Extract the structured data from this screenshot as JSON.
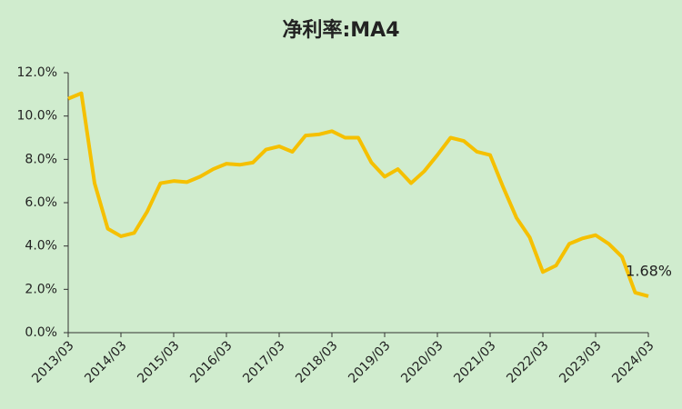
{
  "chart_data": {
    "type": "line",
    "title": "净利率:MA4",
    "categories": [
      "2013/03",
      null,
      null,
      null,
      "2014/03",
      null,
      null,
      null,
      "2015/03",
      null,
      null,
      null,
      "2016/03",
      null,
      null,
      null,
      "2017/03",
      null,
      null,
      null,
      "2018/03",
      null,
      null,
      null,
      "2019/03",
      null,
      null,
      null,
      "2020/03",
      null,
      null,
      null,
      "2021/03",
      null,
      null,
      null,
      "2022/03",
      null,
      null,
      null,
      "2023/03",
      null,
      null,
      null,
      "2024/03"
    ],
    "series": [
      {
        "name": "净利率:MA4",
        "color": "#f5c000",
        "values": [
          10.8,
          11.05,
          6.9,
          4.8,
          4.45,
          4.6,
          5.6,
          6.9,
          7.0,
          6.95,
          7.2,
          7.55,
          7.8,
          7.75,
          7.85,
          8.45,
          8.6,
          8.35,
          9.1,
          9.15,
          9.3,
          9.0,
          9.0,
          7.85,
          7.2,
          7.55,
          6.9,
          7.45,
          8.2,
          9.0,
          8.85,
          8.35,
          8.2,
          6.7,
          5.3,
          4.4,
          2.8,
          3.1,
          4.1,
          4.35,
          4.5,
          4.1,
          3.5,
          1.85,
          1.68
        ],
        "value_labels": [
          null,
          null,
          null,
          null,
          null,
          null,
          null,
          null,
          null,
          null,
          null,
          null,
          null,
          null,
          null,
          null,
          null,
          null,
          null,
          null,
          null,
          null,
          null,
          null,
          null,
          null,
          null,
          null,
          null,
          null,
          null,
          null,
          null,
          null,
          null,
          null,
          null,
          null,
          null,
          null,
          null,
          null,
          null,
          null,
          "1.68%"
        ]
      }
    ],
    "ylim": [
      0,
      12
    ],
    "yticks": [
      {
        "value": 0,
        "label": "0.0%"
      },
      {
        "value": 2,
        "label": "2.0%"
      },
      {
        "value": 4,
        "label": "4.0%"
      },
      {
        "value": 6,
        "label": "6.0%"
      },
      {
        "value": 8,
        "label": "8.0%"
      },
      {
        "value": 10,
        "label": "10.0%"
      },
      {
        "value": 12,
        "label": "12.0%"
      }
    ],
    "grid": false
  }
}
